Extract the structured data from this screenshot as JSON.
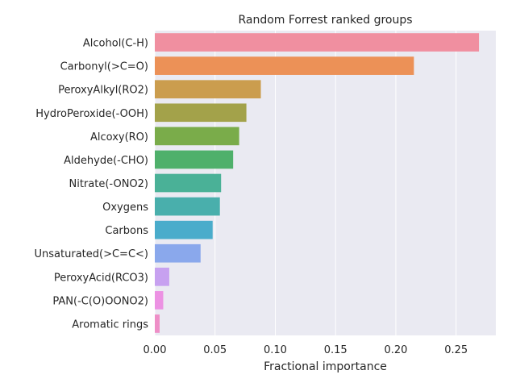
{
  "chart_data": {
    "type": "bar",
    "orientation": "horizontal",
    "title": "Random Forrest ranked groups",
    "xlabel": "Fractional importance",
    "ylabel": "",
    "xlim": [
      0,
      0.283
    ],
    "xticks": [
      "0.00",
      "0.05",
      "0.10",
      "0.15",
      "0.20",
      "0.25"
    ],
    "xtick_values": [
      0,
      0.05,
      0.1,
      0.15,
      0.2,
      0.25
    ],
    "grid": true,
    "background": "#EAEAF2",
    "categories": [
      "Alcohol(C-H)",
      "Carbonyl(>C=O)",
      "PeroxyAlkyl(RO2)",
      "HydroPeroxide(-OOH)",
      "Alcoxy(RO)",
      "Aldehyde(-CHO)",
      "Nitrate(-ONO2)",
      "Oxygens",
      "Carbons",
      "Unsaturated(>C=C<)",
      "PeroxyAcid(RCO3)",
      "PAN(-C(O)OONO2)",
      "Aromatic rings"
    ],
    "values": [
      0.269,
      0.215,
      0.088,
      0.076,
      0.07,
      0.065,
      0.055,
      0.054,
      0.048,
      0.038,
      0.012,
      0.007,
      0.004
    ],
    "colors": [
      "#F08FA0",
      "#EC9157",
      "#CB9D4E",
      "#A3A24A",
      "#7AAC4A",
      "#4FB06B",
      "#4AB197",
      "#49AFAC",
      "#4AACCB",
      "#8AA8EC",
      "#C7A1F0",
      "#EC92E3",
      "#EE8FC7"
    ]
  }
}
